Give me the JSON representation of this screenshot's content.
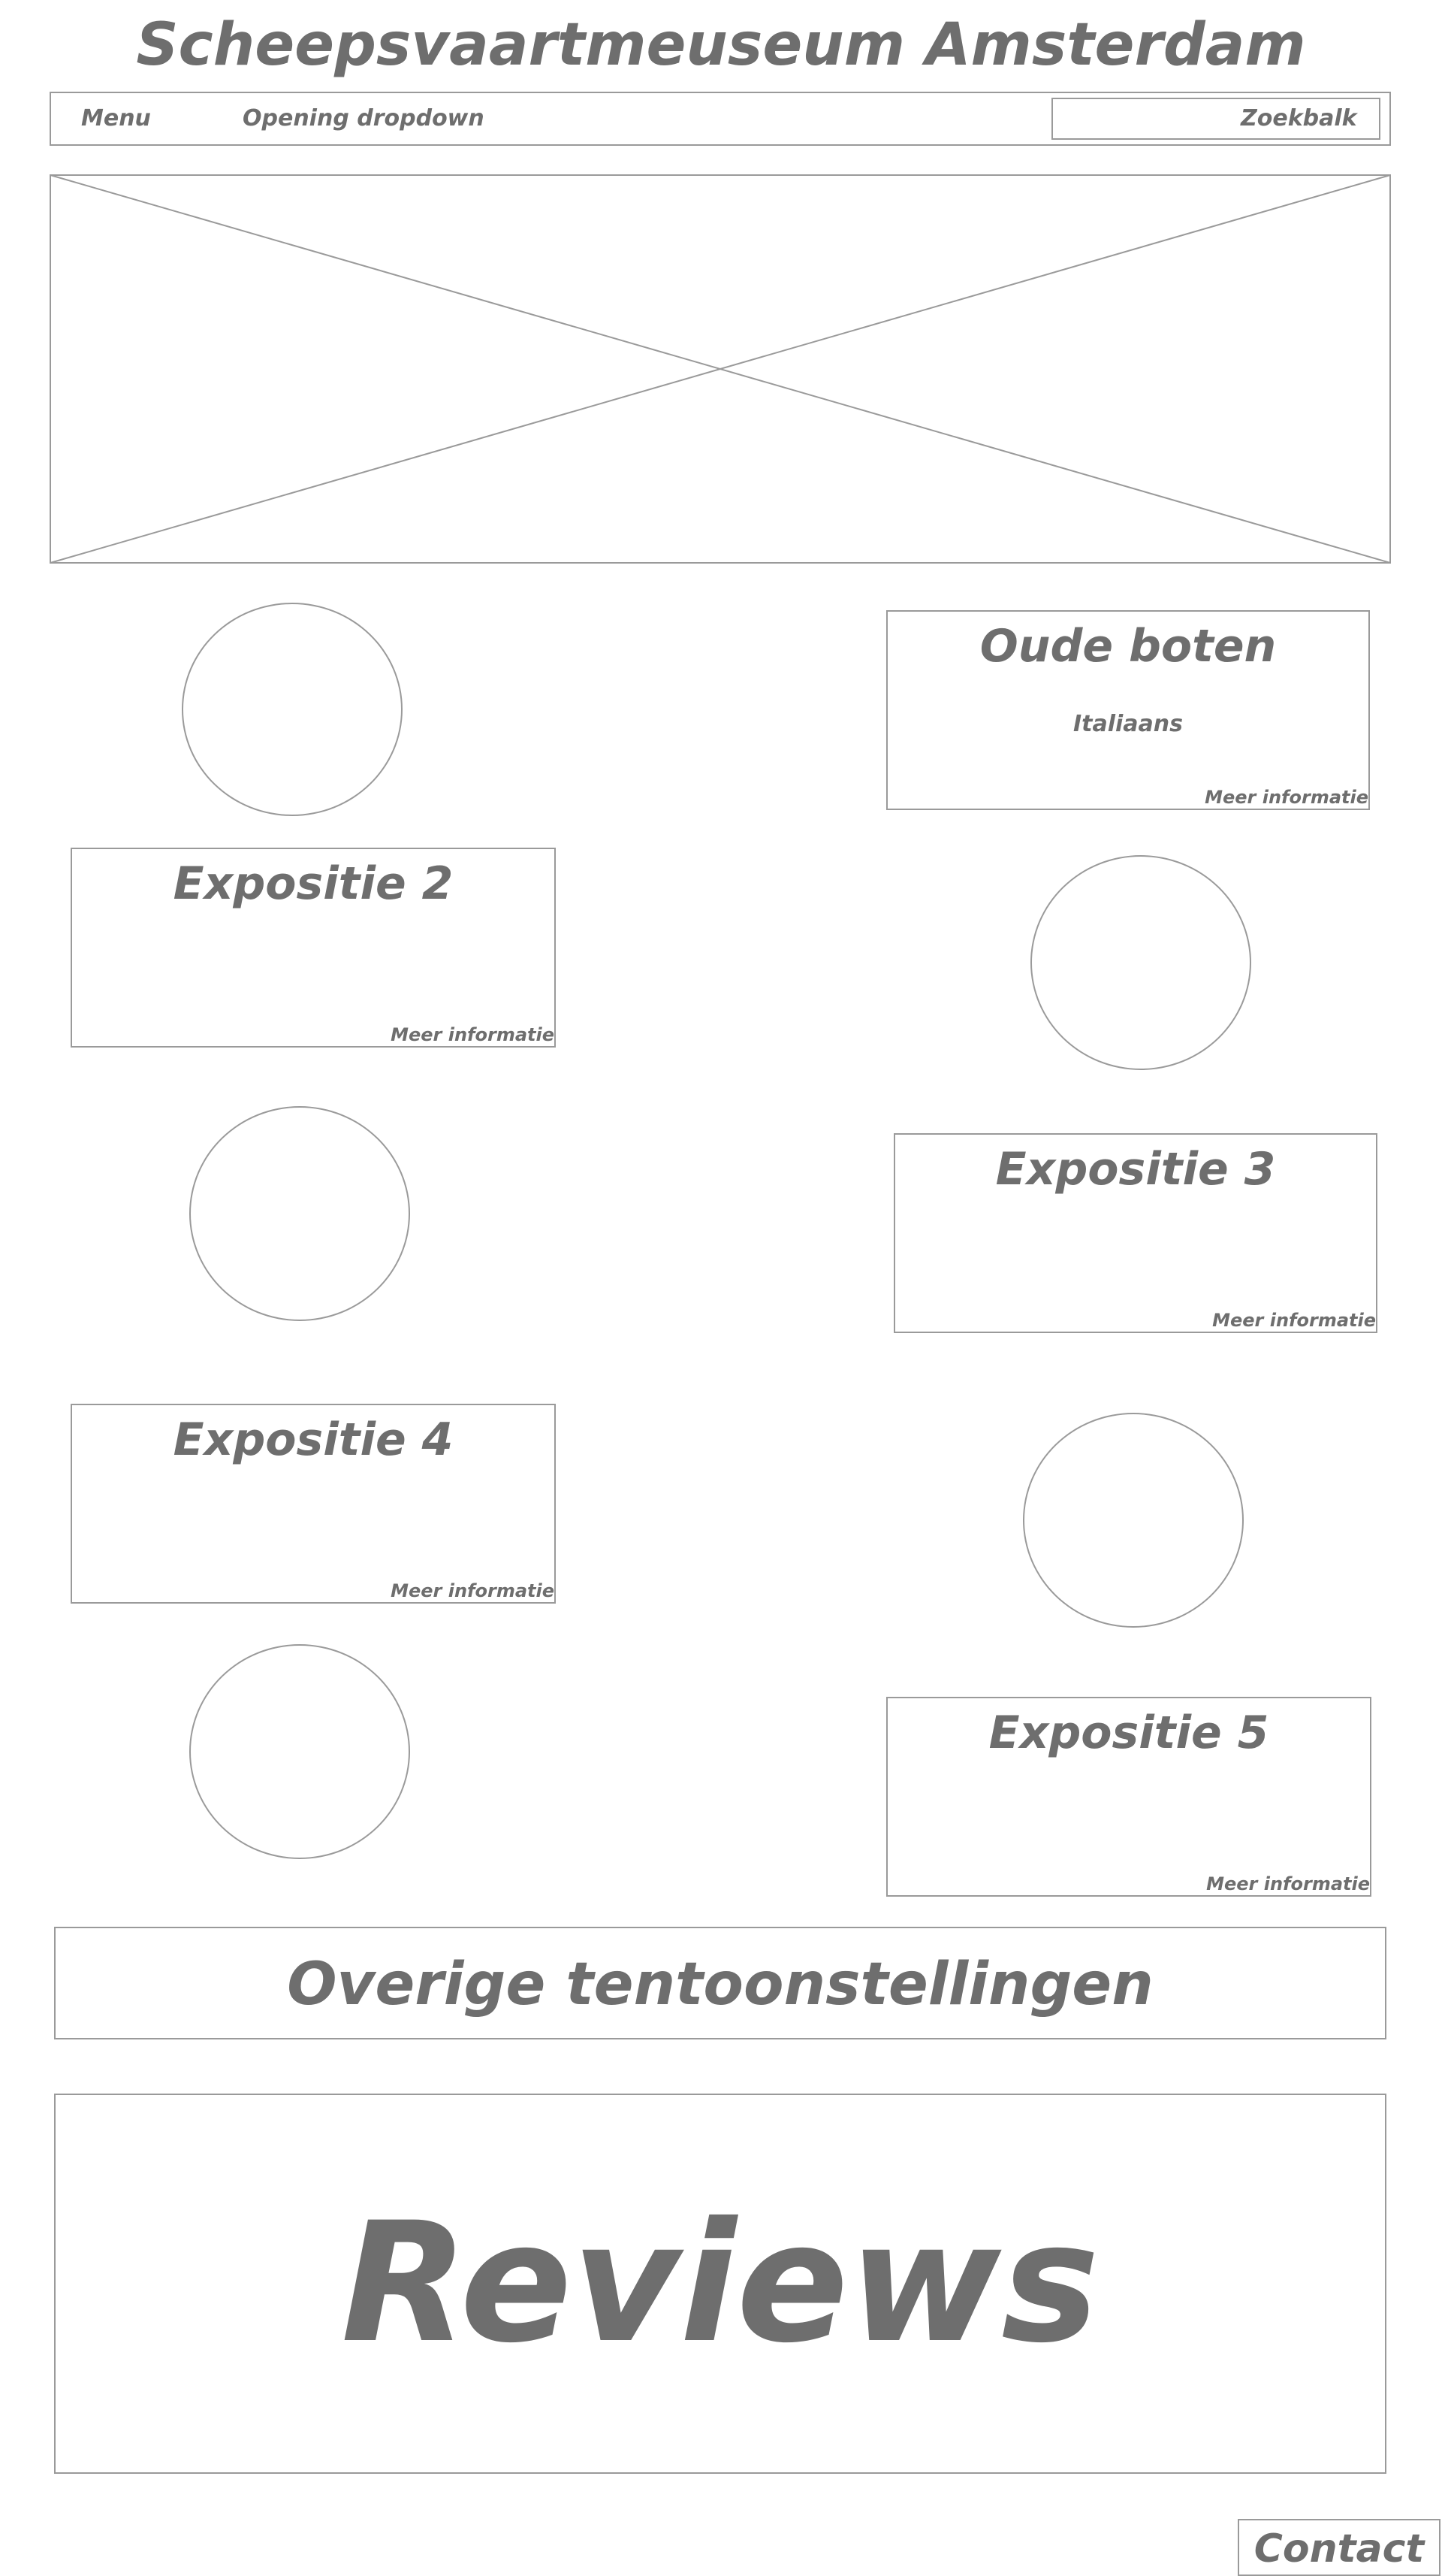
{
  "header": {
    "title": "Scheepsvaartmeuseum Amsterdam"
  },
  "nav": {
    "menu_label": "Menu",
    "dropdown_label": "Opening dropdown",
    "search_placeholder": "Zoekbalk"
  },
  "expositions": [
    {
      "title": "Oude boten",
      "subtitle": "Italiaans",
      "link": "Meer informatie"
    },
    {
      "title": "Expositie 2",
      "subtitle": "",
      "link": "Meer informatie"
    },
    {
      "title": "Expositie 3",
      "subtitle": "",
      "link": "Meer informatie"
    },
    {
      "title": "Expositie 4",
      "subtitle": "",
      "link": "Meer informatie"
    },
    {
      "title": "Expositie 5",
      "subtitle": "",
      "link": "Meer informatie"
    }
  ],
  "other_exhibitions": {
    "label": "Overige tentoonstellingen"
  },
  "reviews": {
    "label": "Reviews"
  },
  "footer": {
    "contact_label": "Contact"
  }
}
